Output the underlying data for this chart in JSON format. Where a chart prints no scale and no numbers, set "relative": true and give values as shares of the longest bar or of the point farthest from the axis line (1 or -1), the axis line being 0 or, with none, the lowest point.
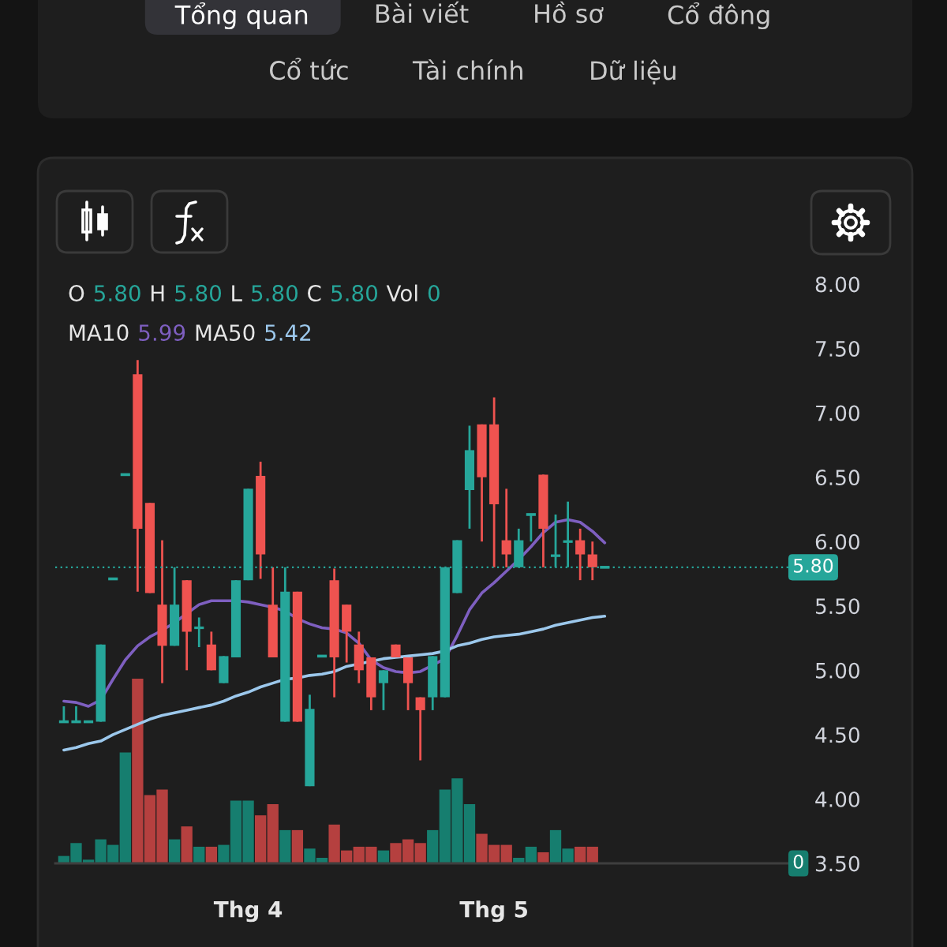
{
  "chart_data": [
    {
      "type": "other",
      "annotations": [
        "Tổng quan",
        "Bài viết",
        "Hồ sơ",
        "Cổ đông",
        "Cổ tức",
        "Tài chính",
        "Dữ liệu"
      ]
    },
    {
      "type": "candlestick",
      "categories": [
        null,
        null,
        null,
        null,
        null,
        null,
        null,
        null,
        null,
        null,
        null,
        null,
        null,
        null,
        null,
        "Thg 4",
        null,
        null,
        null,
        null,
        null,
        null,
        null,
        null,
        null,
        null,
        null,
        null,
        null,
        null,
        null,
        null,
        null,
        null,
        null,
        "Thg 5",
        null,
        null,
        null,
        null,
        null,
        null,
        null,
        null,
        null
      ],
      "ohlc": [
        [
          4.6,
          4.72,
          4.6,
          4.6
        ],
        [
          4.6,
          4.72,
          4.6,
          4.6
        ],
        [
          4.6,
          4.6,
          4.6,
          4.6
        ],
        [
          4.6,
          5.2,
          4.6,
          5.2
        ],
        [
          5.71,
          5.71,
          5.71,
          5.71
        ],
        [
          6.52,
          6.52,
          6.52,
          6.52
        ],
        [
          7.3,
          7.41,
          5.61,
          6.1
        ],
        [
          6.3,
          6.3,
          5.6,
          5.6
        ],
        [
          5.51,
          6.01,
          4.9,
          5.19
        ],
        [
          5.19,
          5.8,
          5.19,
          5.51
        ],
        [
          5.7,
          5.7,
          5.0,
          5.3
        ],
        [
          5.32,
          5.41,
          5.18,
          5.34
        ],
        [
          5.2,
          5.3,
          5.0,
          5.0
        ],
        [
          4.9,
          5.11,
          4.9,
          5.11
        ],
        [
          5.1,
          5.7,
          5.1,
          5.7
        ],
        [
          5.7,
          6.41,
          5.7,
          6.41
        ],
        [
          6.51,
          6.62,
          5.71,
          5.9
        ],
        [
          5.51,
          5.8,
          5.1,
          5.1
        ],
        [
          4.6,
          5.8,
          4.6,
          5.61
        ],
        [
          5.61,
          5.61,
          4.6,
          4.6
        ],
        [
          4.1,
          4.81,
          4.1,
          4.7
        ],
        [
          5.11,
          5.11,
          5.11,
          5.11
        ],
        [
          5.7,
          5.79,
          4.79,
          5.1
        ],
        [
          5.51,
          5.51,
          5.06,
          5.3
        ],
        [
          5.2,
          5.3,
          4.9,
          5.0
        ],
        [
          5.1,
          5.1,
          4.69,
          4.79
        ],
        [
          4.9,
          5.0,
          4.69,
          5.0
        ],
        [
          5.2,
          5.2,
          5.1,
          5.1
        ],
        [
          5.1,
          5.1,
          4.69,
          4.9
        ],
        [
          4.79,
          4.79,
          4.3,
          4.69
        ],
        [
          4.79,
          5.11,
          4.69,
          5.11
        ],
        [
          4.79,
          5.8,
          4.79,
          5.8
        ],
        [
          5.6,
          6.01,
          5.6,
          6.01
        ],
        [
          6.4,
          6.9,
          6.1,
          6.71
        ],
        [
          6.91,
          6.91,
          6.0,
          6.5
        ],
        [
          6.91,
          7.12,
          5.8,
          6.29
        ],
        [
          6.01,
          6.41,
          5.8,
          5.9
        ],
        [
          5.8,
          6.1,
          5.8,
          6.01
        ],
        [
          6.21,
          6.21,
          6.0,
          6.21
        ],
        [
          6.52,
          6.52,
          5.8,
          6.1
        ],
        [
          5.88,
          6.21,
          5.8,
          5.9
        ],
        [
          5.99,
          6.31,
          5.8,
          6.01
        ],
        [
          6.01,
          6.1,
          5.7,
          5.9
        ],
        [
          5.9,
          6.0,
          5.7,
          5.8
        ],
        [
          5.8,
          5.8,
          5.8,
          5.8
        ]
      ],
      "colors": [
        "#26a69a",
        "#26a69a",
        "#26a69a",
        "#26a69a",
        "#26a69a",
        "#26a69a",
        "#ef5350",
        "#ef5350",
        "#ef5350",
        "#26a69a",
        "#ef5350",
        "#26a69a",
        "#ef5350",
        "#26a69a",
        "#26a69a",
        "#26a69a",
        "#ef5350",
        "#ef5350",
        "#26a69a",
        "#ef5350",
        "#26a69a",
        "#26a69a",
        "#ef5350",
        "#ef5350",
        "#ef5350",
        "#ef5350",
        "#26a69a",
        "#ef5350",
        "#ef5350",
        "#ef5350",
        "#26a69a",
        "#26a69a",
        "#26a69a",
        "#26a69a",
        "#ef5350",
        "#ef5350",
        "#ef5350",
        "#26a69a",
        "#26a69a",
        "#ef5350",
        "#26a69a",
        "#26a69a",
        "#ef5350",
        "#ef5350",
        "#26a69a"
      ],
      "series": [
        {
          "type": "line",
          "color": "#7e5fc0",
          "values": [
            4.76,
            4.75,
            4.72,
            4.77,
            4.93,
            5.08,
            5.19,
            5.26,
            5.31,
            5.37,
            5.44,
            5.51,
            5.54,
            5.54,
            5.54,
            5.53,
            5.51,
            5.49,
            5.46,
            5.4,
            5.36,
            5.33,
            5.32,
            5.29,
            5.21,
            5.08,
            5.02,
            4.99,
            4.98,
            4.99,
            5.04,
            5.09,
            5.27,
            5.47,
            5.6,
            5.68,
            5.77,
            5.86,
            5.96,
            6.07,
            6.15,
            6.17,
            6.15,
            6.08,
            5.99
          ]
        },
        {
          "type": "line",
          "color": "#9cc8ec",
          "values": [
            4.38,
            4.4,
            4.43,
            4.45,
            4.5,
            4.54,
            4.58,
            4.62,
            4.65,
            4.67,
            4.69,
            4.71,
            4.73,
            4.76,
            4.8,
            4.83,
            4.87,
            4.9,
            4.93,
            4.94,
            4.96,
            4.97,
            4.99,
            5.03,
            5.05,
            5.07,
            5.09,
            5.1,
            5.11,
            5.12,
            5.13,
            5.15,
            5.19,
            5.21,
            5.24,
            5.26,
            5.27,
            5.28,
            5.3,
            5.32,
            5.35,
            5.37,
            5.39,
            5.41,
            5.42
          ]
        }
      ],
      "ylim": [
        3.5,
        8.0
      ],
      "yticks": [
        {
          "value": 3.5,
          "label": "3.50"
        },
        {
          "value": 4.0,
          "label": "4.00"
        },
        {
          "value": 4.5,
          "label": "4.50"
        },
        {
          "value": 5.0,
          "label": "5.00"
        },
        {
          "value": 5.5,
          "label": "5.50"
        },
        {
          "value": 6.0,
          "label": "6.00"
        },
        {
          "value": 6.5,
          "label": "6.50"
        },
        {
          "value": 7.0,
          "label": "7.00"
        },
        {
          "value": 7.5,
          "label": "7.50"
        },
        {
          "value": 8.0,
          "label": "8.00"
        }
      ],
      "ref_lines": [
        {
          "axis": "y",
          "value": 5.8,
          "label": "5.80",
          "color": "#26a69a",
          "line_style": "dotted"
        }
      ],
      "annotations": [
        "O 5.80 H 5.80 L 5.80 C 5.80 Vol 0",
        "MA10 5.99 MA50 5.42"
      ]
    },
    {
      "type": "bar",
      "relative": true,
      "categories": [
        null,
        null,
        null,
        null,
        null,
        null,
        null,
        null,
        null,
        null,
        null,
        null,
        null,
        null,
        null,
        null,
        null,
        null,
        null,
        null,
        null,
        null,
        null,
        null,
        null,
        null,
        null,
        null,
        null,
        null,
        null,
        null,
        null,
        null,
        null,
        null,
        null,
        null,
        null,
        null,
        null,
        null,
        null,
        null,
        null
      ],
      "values": [
        0.04,
        0.11,
        0.02,
        0.13,
        0.1,
        0.6,
        1.0,
        0.37,
        0.4,
        0.13,
        0.2,
        0.09,
        0.09,
        0.1,
        0.34,
        0.34,
        0.26,
        0.32,
        0.18,
        0.18,
        0.08,
        0.03,
        0.21,
        0.07,
        0.09,
        0.09,
        0.07,
        0.11,
        0.13,
        0.11,
        0.18,
        0.4,
        0.46,
        0.32,
        0.16,
        0.1,
        0.1,
        0.03,
        0.09,
        0.06,
        0.18,
        0.08,
        0.09,
        0.09,
        0
      ],
      "colors": [
        "#167e6f",
        "#167e6f",
        "#167e6f",
        "#167e6f",
        "#167e6f",
        "#167e6f",
        "#b5403f",
        "#b5403f",
        "#b5403f",
        "#167e6f",
        "#b5403f",
        "#167e6f",
        "#b5403f",
        "#167e6f",
        "#167e6f",
        "#167e6f",
        "#b5403f",
        "#b5403f",
        "#167e6f",
        "#b5403f",
        "#167e6f",
        "#167e6f",
        "#b5403f",
        "#b5403f",
        "#b5403f",
        "#b5403f",
        "#167e6f",
        "#b5403f",
        "#b5403f",
        "#b5403f",
        "#167e6f",
        "#167e6f",
        "#167e6f",
        "#167e6f",
        "#b5403f",
        "#b5403f",
        "#b5403f",
        "#167e6f",
        "#167e6f",
        "#b5403f",
        "#167e6f",
        "#167e6f",
        "#b5403f",
        "#b5403f",
        "#167e6f"
      ],
      "annotations": [
        "0"
      ]
    }
  ]
}
